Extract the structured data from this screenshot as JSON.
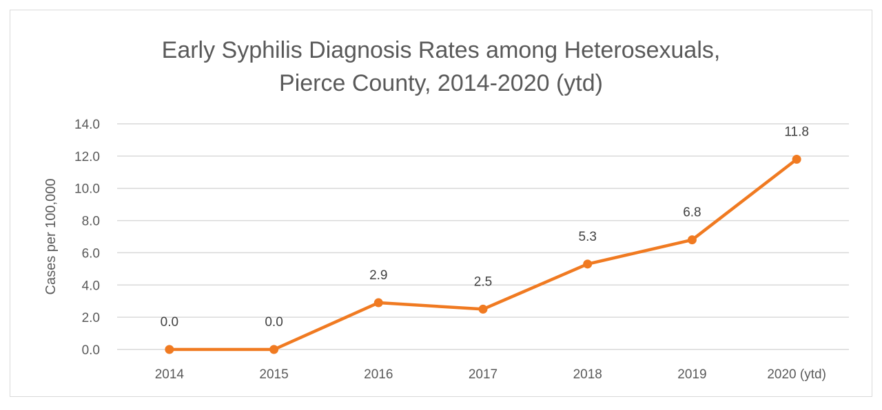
{
  "chart_data": {
    "type": "line",
    "title": [
      "Early Syphilis Diagnosis Rates among Heterosexuals,",
      "Pierce County, 2014-2020 (ytd)"
    ],
    "xlabel": "",
    "ylabel": "Cases per 100,000",
    "categories": [
      "2014",
      "2015",
      "2016",
      "2017",
      "2018",
      "2019",
      "2020 (ytd)"
    ],
    "values": [
      0.0,
      0.0,
      2.9,
      2.5,
      5.3,
      6.8,
      11.8
    ],
    "data_labels": [
      "0.0",
      "0.0",
      "2.9",
      "2.5",
      "5.3",
      "6.8",
      "11.8"
    ],
    "ylim": [
      0,
      14
    ],
    "yticks": [
      "0.0",
      "2.0",
      "4.0",
      "6.0",
      "8.0",
      "10.0",
      "12.0",
      "14.0"
    ],
    "grid": true,
    "legend": "none",
    "color": "#f07a21",
    "gridColor": "#d9d9d9"
  }
}
